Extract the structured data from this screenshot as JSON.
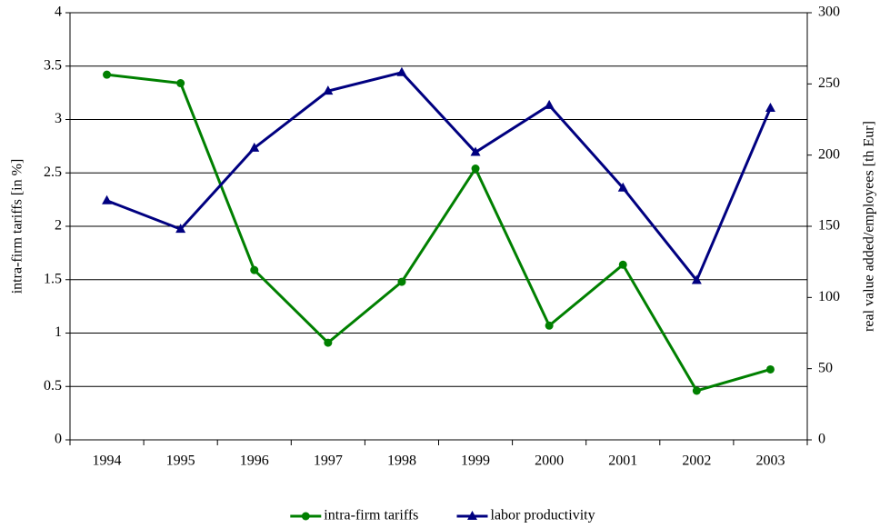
{
  "chart_data": {
    "type": "line",
    "categories": [
      "1994",
      "1995",
      "1996",
      "1997",
      "1998",
      "1999",
      "2000",
      "2001",
      "2002",
      "2003"
    ],
    "series": [
      {
        "name": "intra-firm tariffs",
        "color": "#008000",
        "marker": "circle",
        "values": [
          3.42,
          3.34,
          1.59,
          0.91,
          1.48,
          2.54,
          1.07,
          1.64,
          0.46,
          0.66
        ]
      },
      {
        "name": "labor productivity",
        "color": "#000080",
        "marker": "triangle",
        "axis": "y2",
        "values": [
          168,
          148,
          205,
          245,
          258,
          202,
          235,
          177,
          112,
          233
        ]
      }
    ],
    "ylabel": "intra-firm tariffs [in %]",
    "y2label": "real value added/employees [th Eur]",
    "ylim": [
      0,
      4
    ],
    "yticks": [
      0,
      0.5,
      1,
      1.5,
      2,
      2.5,
      3,
      3.5,
      4
    ],
    "y2lim": [
      0,
      300
    ],
    "y2ticks": [
      0,
      50,
      100,
      150,
      200,
      250,
      300
    ],
    "grid": true,
    "legend": "bottom"
  }
}
